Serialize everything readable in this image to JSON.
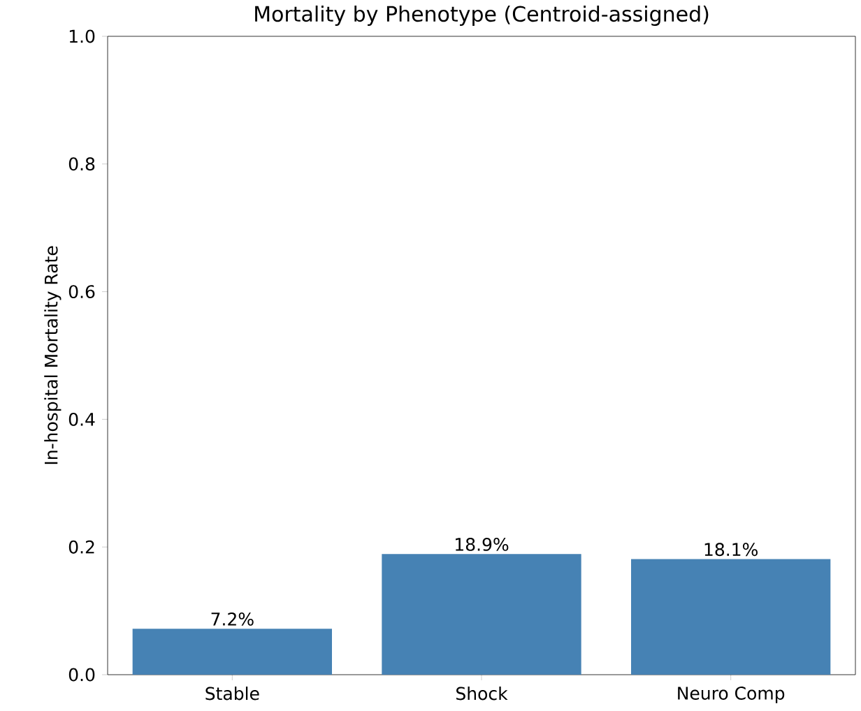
{
  "chart_data": {
    "type": "bar",
    "title": "Mortality by Phenotype (Centroid-assigned)",
    "ylabel": "In-hospital Mortality Rate",
    "categories": [
      "Stable",
      "Shock",
      "Neuro Comp"
    ],
    "values": [
      0.072,
      0.189,
      0.181
    ],
    "value_labels": [
      "7.2%",
      "18.9%",
      "18.1%"
    ],
    "color": "#4682b4",
    "ylim": [
      0,
      1
    ],
    "yticks": [
      {
        "value": 0,
        "label": "0.0"
      },
      {
        "value": 0.2,
        "label": "0.2"
      },
      {
        "value": 0.4,
        "label": "0.4"
      },
      {
        "value": 0.6,
        "label": "0.6"
      },
      {
        "value": 0.8,
        "label": "0.8"
      },
      {
        "value": 1,
        "label": "1.0"
      }
    ]
  }
}
